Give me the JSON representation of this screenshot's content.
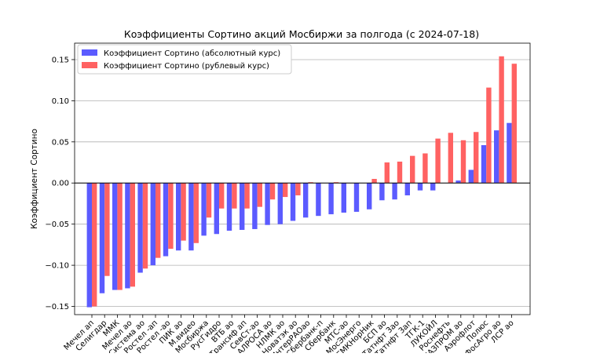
{
  "colors": {
    "absolute": "#5b5bff",
    "rub": "#ff6262",
    "grid": "#b0b0b0",
    "axis": "#000000"
  },
  "chart_data": {
    "type": "bar",
    "title": "Коэффициенты Сортино акций Мосбиржи за полгода (с 2024-07-18)",
    "xlabel": "",
    "ylabel": "Коэффициент Сортино",
    "ylim": [
      -0.16,
      0.17
    ],
    "yticks": [
      -0.15,
      -0.1,
      -0.05,
      0.0,
      0.05,
      0.1,
      0.15
    ],
    "ytick_labels": [
      "−0.15",
      "−0.10",
      "−0.05",
      "0.00",
      "0.05",
      "0.10",
      "0.15"
    ],
    "grid": "horizontal",
    "legend_position": "top-left",
    "categories": [
      "Мечел ап",
      "Селигдар",
      "ММК",
      "Мечел ао",
      "Система ао",
      "Ростел -ап",
      "Ростел -ао",
      "ПИК ао",
      "М.видео",
      "Мосбиржа",
      "РусГидро",
      "ВТБ ао",
      "Трансиф ап",
      "СевСт-ао",
      "АЛРОСА ао",
      "НЛМК ао",
      "Новатэк ао",
      "ИнтерРАОао",
      "Сбербанк-п",
      "Сбербанк",
      "МТС-ао",
      "МосЭнерго",
      "ГМКНорНик",
      "БСП ао",
      "Татнфт 3ао",
      "Татнфт 3ап",
      "ТГК-1",
      "ЛУКОЙЛ",
      "Роснефть",
      "ГАЗПРОМ ао",
      "Аэрофлот",
      "Полюс",
      "ФосАгро ао",
      "ЛСР ао"
    ],
    "series": [
      {
        "name": "Коэффициент Сортино (абсолютный курс)",
        "values": [
          -0.151,
          -0.134,
          -0.13,
          -0.128,
          -0.109,
          -0.1,
          -0.089,
          -0.082,
          -0.082,
          -0.064,
          -0.062,
          -0.058,
          -0.057,
          -0.056,
          -0.051,
          -0.05,
          -0.046,
          -0.042,
          -0.04,
          -0.038,
          -0.036,
          -0.035,
          -0.032,
          -0.021,
          -0.02,
          -0.015,
          -0.009,
          -0.009,
          0.0,
          0.003,
          0.016,
          0.046,
          0.064,
          0.073
        ]
      },
      {
        "name": "Коэффициент Сортино (рублевый курс)",
        "values": [
          -0.15,
          -0.113,
          -0.13,
          -0.126,
          -0.104,
          -0.091,
          -0.08,
          -0.07,
          -0.073,
          -0.042,
          -0.031,
          -0.031,
          -0.031,
          -0.029,
          -0.02,
          -0.017,
          -0.015,
          0.001,
          0.0,
          0.001,
          0.0,
          0.0,
          0.005,
          0.025,
          0.026,
          0.033,
          0.036,
          0.054,
          0.061,
          0.052,
          0.062,
          0.116,
          0.154,
          0.145
        ]
      }
    ]
  }
}
